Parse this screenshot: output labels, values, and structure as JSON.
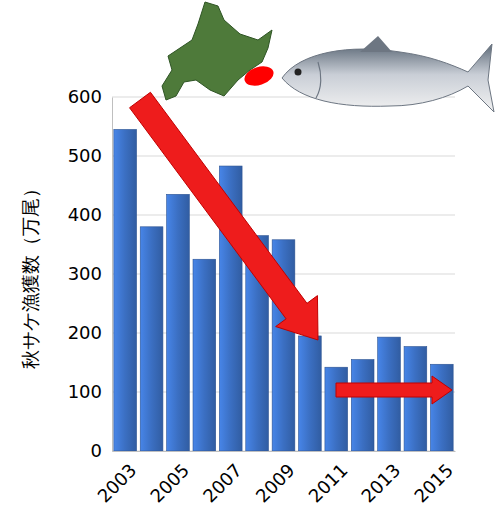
{
  "chart_data": {
    "type": "bar",
    "y_label": "秋サケ漁獲数（万尾）",
    "categories": [
      "2003",
      null,
      "2005",
      null,
      "2007",
      null,
      "2009",
      null,
      "2011",
      null,
      "2013",
      null,
      "2015"
    ],
    "values": [
      545,
      380,
      435,
      325,
      483,
      365,
      358,
      195,
      142,
      155,
      193,
      177,
      147
    ],
    "color": "#3b6fc2",
    "ylim": [
      0,
      600
    ],
    "yticks": [
      0,
      100,
      200,
      300,
      400,
      500,
      600
    ],
    "grid": true
  }
}
